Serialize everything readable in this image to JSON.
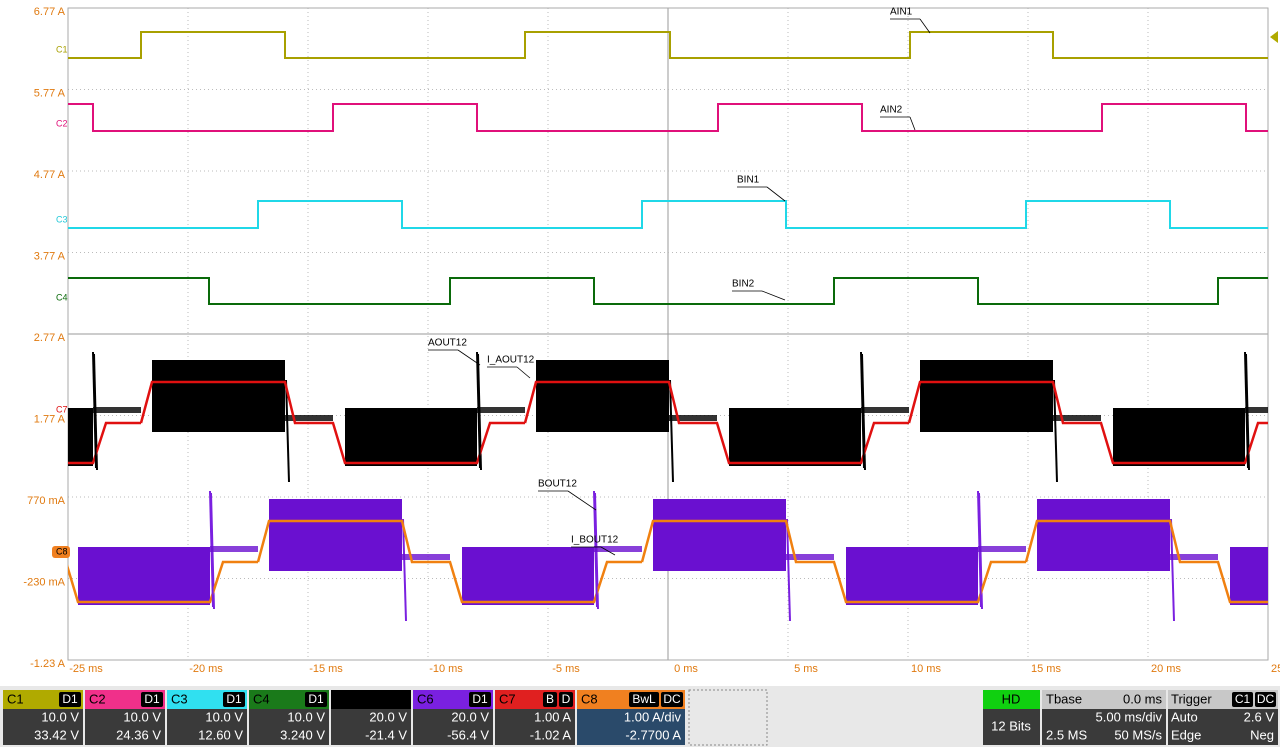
{
  "y_axis_labels": [
    "6.77 A",
    "5.77 A",
    "4.77 A",
    "3.77 A",
    "2.77 A",
    "1.77 A",
    "770 mA",
    "-230 mA",
    "-1.23 A"
  ],
  "x_axis_labels": [
    "-25 ms",
    "-20 ms",
    "-15 ms",
    "-10 ms",
    "-5 ms",
    "0 ms",
    "5 ms",
    "10 ms",
    "15 ms",
    "20 ms",
    "25 ms"
  ],
  "channel_markers": [
    "C1",
    "C2",
    "C3",
    "C4",
    "C7",
    "C8"
  ],
  "trace_labels": [
    "AIN1",
    "AIN2",
    "BIN1",
    "BIN2",
    "AOUT12",
    "I_AOUT12",
    "BOUT12",
    "I_BOUT12"
  ],
  "channels": [
    {
      "name": "C1",
      "color": "#b0aa00",
      "badges": [
        "D1"
      ],
      "scale": "10.0 V",
      "offset": "33.42 V"
    },
    {
      "name": "C2",
      "color": "#f0308a",
      "badges": [
        "D1"
      ],
      "scale": "10.0 V",
      "offset": "24.36 V"
    },
    {
      "name": "C3",
      "color": "#30e0f0",
      "badges": [
        "D1"
      ],
      "scale": "10.0 V",
      "offset": "12.60 V"
    },
    {
      "name": "C4",
      "color": "#1a7a1a",
      "badges": [
        "D1"
      ],
      "scale": "10.0 V",
      "offset": "3.240 V"
    },
    {
      "color": "#000000",
      "badges": [],
      "scale": "20.0 V",
      "offset": "-21.4 V"
    },
    {
      "name": "C6",
      "color": "#7a20e0",
      "badges": [
        "D1"
      ],
      "scale": "20.0 V",
      "offset": "-56.4 V"
    },
    {
      "name": "C7",
      "color": "#e02020",
      "badges": [
        "B",
        "D"
      ],
      "scale": "1.00 A",
      "offset": "-1.02 A"
    },
    {
      "name": "C8",
      "color": "#f08020",
      "badges": [
        "BwL",
        "DC"
      ],
      "scale": "1.00 A/div",
      "offset": "-2.7700 A"
    }
  ],
  "acquisition": {
    "label": "HD",
    "bits": "12 Bits"
  },
  "timebase": {
    "label": "Tbase",
    "value": "0.0 ms",
    "scale": "5.00 ms/div",
    "samples": "2.5 MS",
    "rate": "50 MS/s"
  },
  "trigger": {
    "label": "Trigger",
    "badges": [
      "C1",
      "DC"
    ],
    "mode": "Auto",
    "level": "2.6 V",
    "type": "Edge",
    "slope": "Neg"
  }
}
